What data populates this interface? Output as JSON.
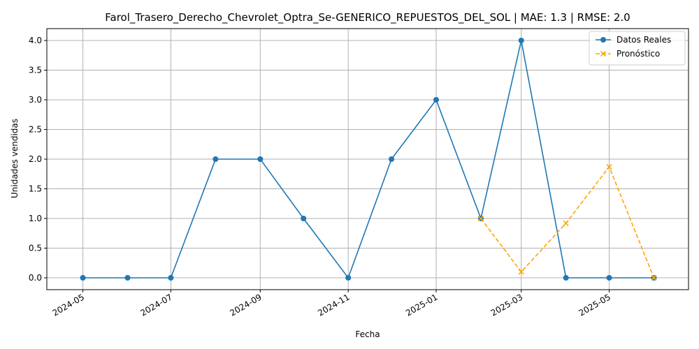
{
  "chart_data": {
    "type": "line",
    "title": "Farol_Trasero_Derecho_Chevrolet_Optra_Se-GENERICO_REPUESTOS_DEL_SOL | MAE: 1.3 | RMSE: 2.0",
    "xlabel": "Fecha",
    "ylabel": "Unidades vendidas",
    "x_tick_labels": [
      "2024-05",
      "2024-07",
      "2024-09",
      "2024-11",
      "2025-01",
      "2025-03",
      "2025-05"
    ],
    "y_tick_labels": [
      "0.0",
      "0.5",
      "1.0",
      "1.5",
      "2.0",
      "2.5",
      "3.0",
      "3.5",
      "4.0"
    ],
    "ylim": [
      -0.2,
      4.2
    ],
    "xlim": [
      "2024-04-06",
      "2025-06-25"
    ],
    "grid": true,
    "legend_position": "top-right",
    "series": [
      {
        "name": "Datos Reales",
        "color": "#1f77b4",
        "line_style": "solid",
        "marker": "circle",
        "x": [
          "2024-05-01",
          "2024-06-01",
          "2024-07-01",
          "2024-08-01",
          "2024-09-01",
          "2024-10-01",
          "2024-11-01",
          "2024-12-01",
          "2025-01-01",
          "2025-02-01",
          "2025-03-01",
          "2025-04-01",
          "2025-05-01",
          "2025-06-01"
        ],
        "values": [
          0,
          0,
          0,
          2,
          2,
          1,
          0,
          2,
          3,
          1,
          4,
          0,
          0,
          0
        ]
      },
      {
        "name": "Pronóstico",
        "color": "#ffa500",
        "line_style": "dashed",
        "marker": "x",
        "x": [
          "2025-02-01",
          "2025-03-01",
          "2025-04-01",
          "2025-05-01",
          "2025-06-01"
        ],
        "values": [
          1.0,
          0.1,
          0.92,
          1.87,
          0.0
        ]
      }
    ]
  }
}
